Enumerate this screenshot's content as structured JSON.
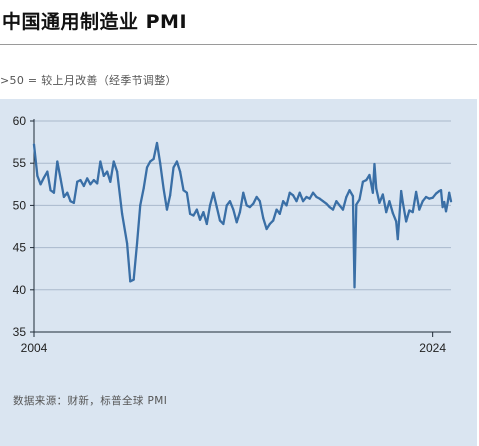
{
  "page": {
    "title": "中国通用制造业 PMI",
    "subtitle": ">50 = 较上月改善（经季节调整）",
    "source": "数据来源：财新，标普全球 PMI"
  },
  "colors": {
    "panel_background": "#dae5f1",
    "line": "#3a6fa6",
    "gridline": "#a9b9cc",
    "axis": "#1f2a36"
  },
  "chart_data": {
    "type": "line",
    "title": "",
    "xlabel": "",
    "ylabel": "",
    "grid": true,
    "ylim": [
      35,
      60
    ],
    "y_ticks": [
      {
        "value": 60,
        "label": "60"
      },
      {
        "value": 55,
        "label": "55"
      },
      {
        "value": 50,
        "label": "50"
      },
      {
        "value": 45,
        "label": "45"
      },
      {
        "value": 40,
        "label": "40"
      },
      {
        "value": 35,
        "label": "35"
      }
    ],
    "x_range": [
      2004.0,
      2024.92
    ],
    "x_ticks": [
      {
        "value": 2004,
        "label": "2004"
      },
      {
        "value": 2024,
        "label": "2024"
      }
    ],
    "series": [
      {
        "points": [
          [
            2004.0,
            57.2
          ],
          [
            2004.17,
            53.5
          ],
          [
            2004.33,
            52.5
          ],
          [
            2004.5,
            53.3
          ],
          [
            2004.67,
            54.0
          ],
          [
            2004.83,
            51.8
          ],
          [
            2005.0,
            51.5
          ],
          [
            2005.17,
            55.2
          ],
          [
            2005.33,
            53.2
          ],
          [
            2005.5,
            51.0
          ],
          [
            2005.67,
            51.5
          ],
          [
            2005.83,
            50.5
          ],
          [
            2006.0,
            50.3
          ],
          [
            2006.17,
            52.8
          ],
          [
            2006.33,
            53.0
          ],
          [
            2006.5,
            52.3
          ],
          [
            2006.67,
            53.2
          ],
          [
            2006.83,
            52.5
          ],
          [
            2007.0,
            53.0
          ],
          [
            2007.17,
            52.6
          ],
          [
            2007.33,
            55.2
          ],
          [
            2007.5,
            53.5
          ],
          [
            2007.67,
            54.0
          ],
          [
            2007.83,
            52.8
          ],
          [
            2008.0,
            55.2
          ],
          [
            2008.17,
            54.0
          ],
          [
            2008.42,
            49.0
          ],
          [
            2008.67,
            45.5
          ],
          [
            2008.83,
            41.0
          ],
          [
            2009.0,
            41.2
          ],
          [
            2009.17,
            45.5
          ],
          [
            2009.33,
            50.0
          ],
          [
            2009.5,
            52.0
          ],
          [
            2009.67,
            54.5
          ],
          [
            2009.83,
            55.2
          ],
          [
            2010.0,
            55.5
          ],
          [
            2010.17,
            57.4
          ],
          [
            2010.33,
            55.0
          ],
          [
            2010.5,
            52.0
          ],
          [
            2010.67,
            49.5
          ],
          [
            2010.83,
            51.2
          ],
          [
            2011.0,
            54.5
          ],
          [
            2011.17,
            55.2
          ],
          [
            2011.33,
            54.0
          ],
          [
            2011.5,
            51.8
          ],
          [
            2011.67,
            51.5
          ],
          [
            2011.83,
            49.0
          ],
          [
            2012.0,
            48.8
          ],
          [
            2012.17,
            49.5
          ],
          [
            2012.33,
            48.3
          ],
          [
            2012.5,
            49.2
          ],
          [
            2012.67,
            47.8
          ],
          [
            2012.83,
            50.0
          ],
          [
            2013.0,
            51.5
          ],
          [
            2013.17,
            49.8
          ],
          [
            2013.33,
            48.2
          ],
          [
            2013.5,
            47.8
          ],
          [
            2013.67,
            50.0
          ],
          [
            2013.83,
            50.5
          ],
          [
            2014.0,
            49.5
          ],
          [
            2014.17,
            48.0
          ],
          [
            2014.33,
            49.2
          ],
          [
            2014.5,
            51.5
          ],
          [
            2014.67,
            50.0
          ],
          [
            2014.83,
            49.8
          ],
          [
            2015.0,
            50.2
          ],
          [
            2015.17,
            51.0
          ],
          [
            2015.33,
            50.5
          ],
          [
            2015.5,
            48.5
          ],
          [
            2015.67,
            47.2
          ],
          [
            2015.83,
            47.8
          ],
          [
            2016.0,
            48.2
          ],
          [
            2016.17,
            49.5
          ],
          [
            2016.33,
            49.0
          ],
          [
            2016.5,
            50.5
          ],
          [
            2016.67,
            50.0
          ],
          [
            2016.83,
            51.5
          ],
          [
            2017.0,
            51.2
          ],
          [
            2017.17,
            50.5
          ],
          [
            2017.33,
            51.5
          ],
          [
            2017.5,
            50.5
          ],
          [
            2017.67,
            51.0
          ],
          [
            2017.83,
            50.8
          ],
          [
            2018.0,
            51.5
          ],
          [
            2018.17,
            51.0
          ],
          [
            2018.33,
            50.8
          ],
          [
            2018.5,
            50.5
          ],
          [
            2018.67,
            50.2
          ],
          [
            2018.83,
            49.8
          ],
          [
            2019.0,
            49.5
          ],
          [
            2019.17,
            50.5
          ],
          [
            2019.33,
            50.0
          ],
          [
            2019.5,
            49.5
          ],
          [
            2019.67,
            51.0
          ],
          [
            2019.83,
            51.8
          ],
          [
            2020.0,
            51.1
          ],
          [
            2020.08,
            40.3
          ],
          [
            2020.17,
            50.1
          ],
          [
            2020.33,
            50.7
          ],
          [
            2020.5,
            52.8
          ],
          [
            2020.67,
            53.0
          ],
          [
            2020.83,
            53.6
          ],
          [
            2021.0,
            51.5
          ],
          [
            2021.08,
            54.9
          ],
          [
            2021.17,
            52.0
          ],
          [
            2021.33,
            50.3
          ],
          [
            2021.5,
            51.3
          ],
          [
            2021.67,
            49.2
          ],
          [
            2021.83,
            50.5
          ],
          [
            2022.0,
            49.1
          ],
          [
            2022.17,
            48.1
          ],
          [
            2022.25,
            46.0
          ],
          [
            2022.42,
            51.7
          ],
          [
            2022.5,
            50.4
          ],
          [
            2022.67,
            48.1
          ],
          [
            2022.83,
            49.4
          ],
          [
            2023.0,
            49.2
          ],
          [
            2023.17,
            51.6
          ],
          [
            2023.33,
            49.5
          ],
          [
            2023.5,
            50.5
          ],
          [
            2023.67,
            51.0
          ],
          [
            2023.83,
            50.8
          ],
          [
            2024.0,
            50.9
          ],
          [
            2024.17,
            51.4
          ],
          [
            2024.33,
            51.7
          ],
          [
            2024.42,
            51.8
          ],
          [
            2024.5,
            49.8
          ],
          [
            2024.58,
            50.4
          ],
          [
            2024.67,
            49.3
          ],
          [
            2024.75,
            50.3
          ],
          [
            2024.83,
            51.5
          ],
          [
            2024.92,
            50.5
          ]
        ]
      }
    ]
  }
}
